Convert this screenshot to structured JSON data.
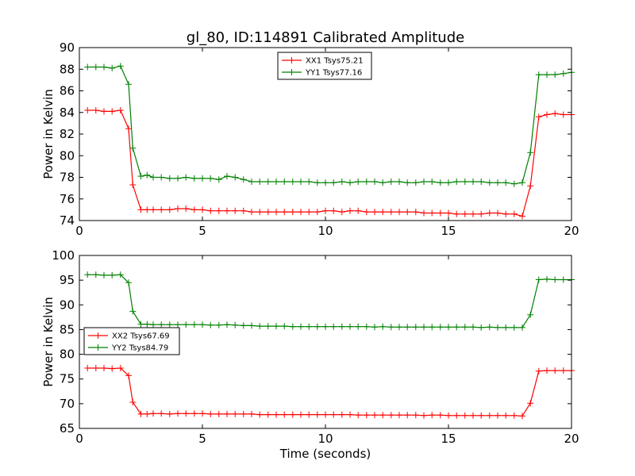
{
  "figure": {
    "title": "gl_80, ID:114891 Calibrated Amplitude"
  },
  "chart_data": [
    {
      "type": "line",
      "title": "gl_80, ID:114891 Calibrated Amplitude",
      "xlabel": "",
      "ylabel": "Power in Kelvin",
      "xlim": [
        0,
        20
      ],
      "ylim": [
        74,
        90
      ],
      "xticks": [
        0,
        5,
        10,
        15,
        20
      ],
      "yticks": [
        74,
        76,
        78,
        80,
        82,
        84,
        86,
        88,
        90
      ],
      "grid": false,
      "legend_position": "top-center",
      "x": [
        0.33,
        0.67,
        1.0,
        1.33,
        1.67,
        2.0,
        2.17,
        2.5,
        2.75,
        3.0,
        3.33,
        3.67,
        4.0,
        4.33,
        4.67,
        5.0,
        5.33,
        5.67,
        6.0,
        6.33,
        6.67,
        7.0,
        7.33,
        7.67,
        8.0,
        8.33,
        8.67,
        9.0,
        9.33,
        9.67,
        10.0,
        10.33,
        10.67,
        11.0,
        11.33,
        11.67,
        12.0,
        12.33,
        12.67,
        13.0,
        13.33,
        13.67,
        14.0,
        14.33,
        14.67,
        15.0,
        15.33,
        15.67,
        16.0,
        16.33,
        16.67,
        17.0,
        17.33,
        17.67,
        18.0,
        18.33,
        18.67,
        19.0,
        19.33,
        19.67,
        20.0
      ],
      "series": [
        {
          "name": "XX1 Tsys75.21",
          "color": "#ff0000",
          "values": [
            84.2,
            84.2,
            84.1,
            84.1,
            84.2,
            82.5,
            77.3,
            75.0,
            75.0,
            75.0,
            75.0,
            75.0,
            75.1,
            75.1,
            75.0,
            75.0,
            74.9,
            74.9,
            74.9,
            74.9,
            74.9,
            74.8,
            74.8,
            74.8,
            74.8,
            74.8,
            74.8,
            74.8,
            74.8,
            74.8,
            74.9,
            74.9,
            74.8,
            74.9,
            74.9,
            74.8,
            74.8,
            74.8,
            74.8,
            74.8,
            74.8,
            74.8,
            74.7,
            74.7,
            74.7,
            74.7,
            74.6,
            74.6,
            74.6,
            74.6,
            74.7,
            74.7,
            74.6,
            74.6,
            74.4,
            77.2,
            83.6,
            83.8,
            83.9,
            83.8,
            83.8
          ]
        },
        {
          "name": "YY1 Tsys77.16",
          "color": "#008000",
          "values": [
            88.2,
            88.2,
            88.2,
            88.1,
            88.3,
            86.6,
            80.7,
            78.1,
            78.2,
            78.0,
            78.0,
            77.9,
            77.9,
            78.0,
            77.9,
            77.9,
            77.9,
            77.8,
            78.1,
            78.0,
            77.8,
            77.6,
            77.6,
            77.6,
            77.6,
            77.6,
            77.6,
            77.6,
            77.6,
            77.5,
            77.5,
            77.5,
            77.6,
            77.5,
            77.6,
            77.6,
            77.6,
            77.5,
            77.6,
            77.6,
            77.5,
            77.5,
            77.6,
            77.6,
            77.5,
            77.5,
            77.6,
            77.6,
            77.6,
            77.6,
            77.5,
            77.5,
            77.5,
            77.4,
            77.5,
            80.3,
            87.5,
            87.5,
            87.5,
            87.6,
            87.7
          ]
        }
      ]
    },
    {
      "type": "line",
      "title": "",
      "xlabel": "Time (seconds)",
      "ylabel": "Power in Kelvin",
      "xlim": [
        0,
        20
      ],
      "ylim": [
        65,
        100
      ],
      "xticks": [
        0,
        5,
        10,
        15,
        20
      ],
      "yticks": [
        65,
        70,
        75,
        80,
        85,
        90,
        95,
        100
      ],
      "grid": false,
      "legend_position": "center-left",
      "x": [
        0.33,
        0.67,
        1.0,
        1.33,
        1.67,
        2.0,
        2.17,
        2.5,
        2.75,
        3.0,
        3.33,
        3.67,
        4.0,
        4.33,
        4.67,
        5.0,
        5.33,
        5.67,
        6.0,
        6.33,
        6.67,
        7.0,
        7.33,
        7.67,
        8.0,
        8.33,
        8.67,
        9.0,
        9.33,
        9.67,
        10.0,
        10.33,
        10.67,
        11.0,
        11.33,
        11.67,
        12.0,
        12.33,
        12.67,
        13.0,
        13.33,
        13.67,
        14.0,
        14.33,
        14.67,
        15.0,
        15.33,
        15.67,
        16.0,
        16.33,
        16.67,
        17.0,
        17.33,
        17.67,
        18.0,
        18.33,
        18.67,
        19.0,
        19.33,
        19.67,
        20.0
      ],
      "series": [
        {
          "name": "XX2 Tsys67.69",
          "color": "#ff0000",
          "values": [
            77.2,
            77.2,
            77.2,
            77.1,
            77.2,
            75.7,
            70.3,
            67.9,
            67.9,
            68.0,
            68.0,
            67.9,
            68.0,
            68.0,
            68.0,
            68.0,
            67.9,
            67.9,
            67.9,
            67.9,
            67.9,
            67.9,
            67.8,
            67.8,
            67.8,
            67.8,
            67.8,
            67.8,
            67.8,
            67.8,
            67.8,
            67.8,
            67.8,
            67.8,
            67.7,
            67.7,
            67.7,
            67.7,
            67.7,
            67.7,
            67.7,
            67.7,
            67.6,
            67.7,
            67.7,
            67.6,
            67.6,
            67.6,
            67.6,
            67.6,
            67.6,
            67.6,
            67.6,
            67.6,
            67.5,
            70.1,
            76.6,
            76.7,
            76.7,
            76.7,
            76.7
          ]
        },
        {
          "name": "YY2 Tsys84.79",
          "color": "#008000",
          "values": [
            96.1,
            96.1,
            96.0,
            96.0,
            96.1,
            94.5,
            88.7,
            86.1,
            86.1,
            86.0,
            86.0,
            86.0,
            86.0,
            86.0,
            86.0,
            86.0,
            85.9,
            85.9,
            86.0,
            85.9,
            85.8,
            85.8,
            85.7,
            85.7,
            85.7,
            85.7,
            85.6,
            85.6,
            85.6,
            85.6,
            85.6,
            85.6,
            85.6,
            85.6,
            85.6,
            85.6,
            85.5,
            85.6,
            85.5,
            85.5,
            85.5,
            85.5,
            85.5,
            85.5,
            85.5,
            85.5,
            85.5,
            85.5,
            85.5,
            85.4,
            85.5,
            85.4,
            85.4,
            85.4,
            85.4,
            88.0,
            95.1,
            95.2,
            95.1,
            95.1,
            95.1
          ]
        }
      ]
    }
  ]
}
